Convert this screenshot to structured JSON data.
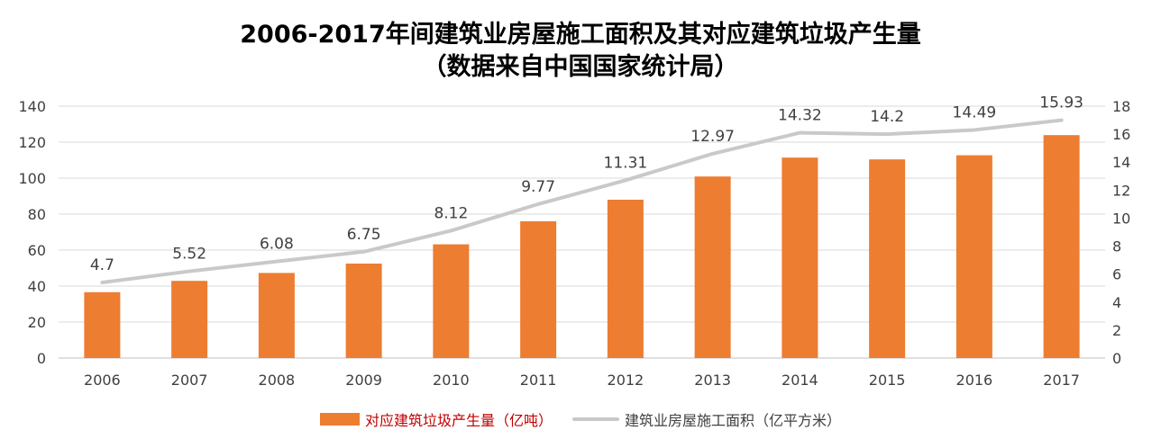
{
  "title": "2006-2017年间建筑业房屋施工面积及其对应建筑垃圾产生量",
  "subtitle": "（数据来自中国国家统计局）",
  "chart_data": {
    "type": "bar",
    "categories": [
      "2006",
      "2007",
      "2008",
      "2009",
      "2010",
      "2011",
      "2012",
      "2013",
      "2014",
      "2015",
      "2016",
      "2017"
    ],
    "series": [
      {
        "name": "对应建筑垃圾产生量（亿吨）",
        "type": "bar",
        "axis": "left",
        "color": "#ED7D31",
        "values": [
          36.6,
          42.9,
          47.3,
          52.5,
          63.2,
          76.0,
          88.0,
          100.9,
          111.4,
          110.4,
          112.7,
          123.9
        ]
      },
      {
        "name": "建筑业房屋施工面积（亿平方米）",
        "type": "line",
        "axis": "right",
        "color": "#C9C9C9",
        "values": [
          5.4,
          6.2,
          6.9,
          7.6,
          9.1,
          11.0,
          12.7,
          14.6,
          16.1,
          16.0,
          16.3,
          17.0
        ]
      }
    ],
    "data_labels": [
      "4.7",
      "5.52",
      "6.08",
      "6.75",
      "8.12",
      "9.77",
      "11.31",
      "12.97",
      "14.32",
      "14.2",
      "14.49",
      "15.93"
    ],
    "y_left": {
      "ylim": [
        0,
        140
      ],
      "ticks": [
        "0",
        "20",
        "40",
        "60",
        "80",
        "100",
        "120",
        "140"
      ]
    },
    "y_right": {
      "ylim": [
        0,
        18
      ],
      "ticks": [
        "0",
        "2",
        "4",
        "6",
        "8",
        "10",
        "12",
        "14",
        "16",
        "18"
      ]
    },
    "grid": true,
    "legend_position": "bottom"
  }
}
